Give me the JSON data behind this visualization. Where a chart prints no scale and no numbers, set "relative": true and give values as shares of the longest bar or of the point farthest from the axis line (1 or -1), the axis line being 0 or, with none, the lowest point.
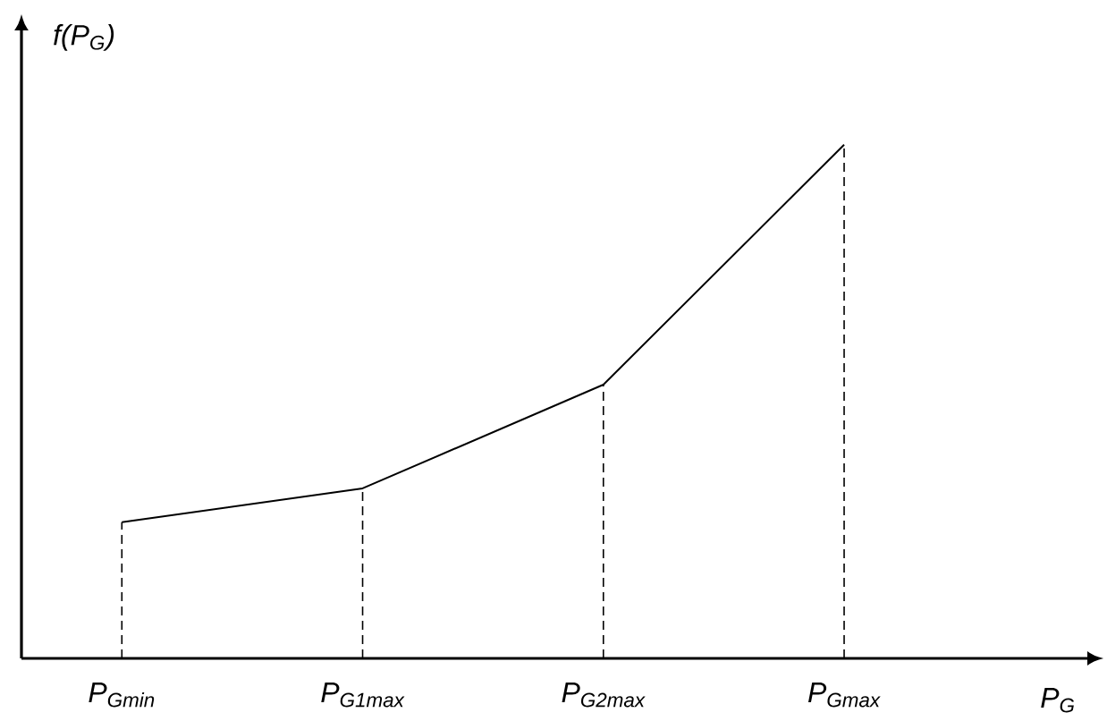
{
  "chart_data": {
    "type": "line",
    "relative": true,
    "ylabel": "f(P$_{G}$)",
    "xlabel": "P$_{G}$",
    "categories": [
      "P$_{Gmin}$",
      "P$_{G1max}$",
      "P$_{G2max}$",
      "P$_{Gmax}$"
    ],
    "values": [
      0.265,
      0.331,
      0.533,
      1
    ],
    "color": "#000000",
    "line_style": "solid",
    "marker": "none",
    "ref_lines": [
      {
        "axis": "x",
        "value": "P$_{Gmin}$",
        "line_style": "dashed",
        "color": "#000000"
      },
      {
        "axis": "x",
        "value": "P$_{G1max}$",
        "line_style": "dashed",
        "color": "#000000"
      },
      {
        "axis": "x",
        "value": "P$_{G2max}$",
        "line_style": "dashed",
        "color": "#000000"
      },
      {
        "axis": "x",
        "value": "P$_{Gmax}$",
        "line_style": "dashed",
        "color": "#000000"
      }
    ]
  }
}
